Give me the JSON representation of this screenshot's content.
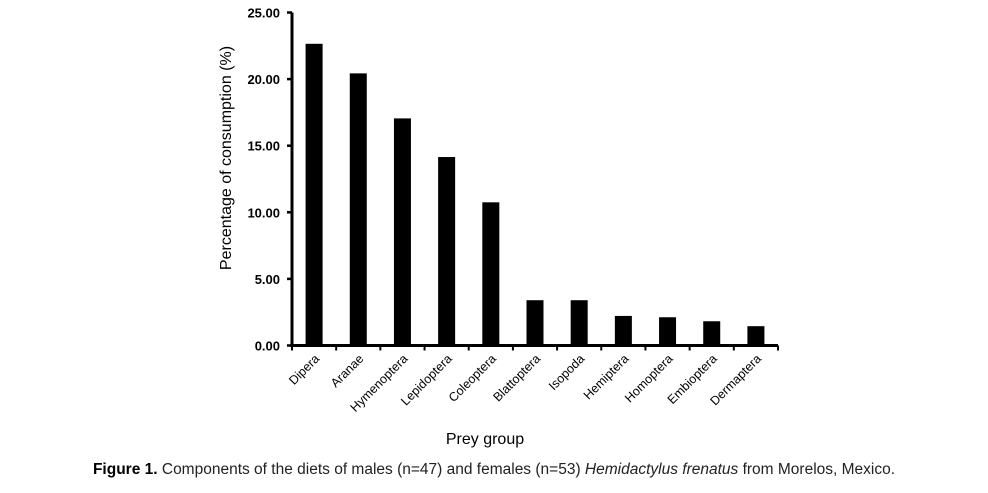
{
  "chart_data": {
    "type": "bar",
    "title": "",
    "xlabel": "Prey group",
    "ylabel": "Percentage of consumption  (%)",
    "ylim": [
      0,
      25
    ],
    "yticks": [
      "0.00",
      "5.00",
      "10.00",
      "15.00",
      "20.00",
      "25.00"
    ],
    "categories": [
      "Dipera",
      "Aranae",
      "Hymenoptera",
      "Lepidoptera",
      "Coleoptera",
      "Blattoptera",
      "Isopoda",
      "Hemiptera",
      "Homoptera",
      "Embioptera",
      "Dermaptera"
    ],
    "values": [
      22.65,
      20.43,
      17.05,
      14.15,
      10.75,
      3.4,
      3.4,
      2.22,
      2.12,
      1.82,
      1.45
    ],
    "bar_color": "#000000",
    "grid": false
  },
  "caption": {
    "label": "Figure 1.",
    "text_before": " Components of the diets of males (n=47) and females (n=53) ",
    "species": "Hemidactylus frenatus",
    "text_after": " from Morelos, Mexico."
  }
}
